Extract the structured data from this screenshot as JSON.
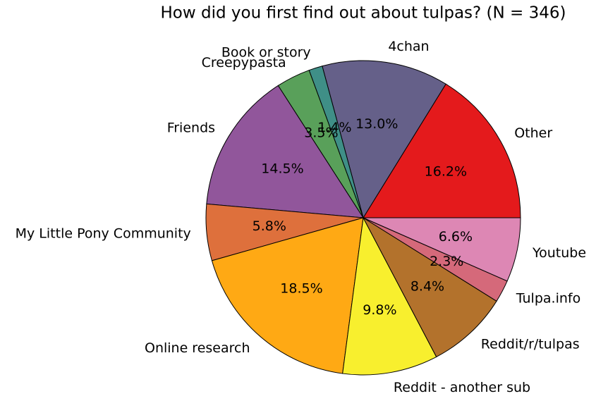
{
  "chart_data": {
    "type": "pie",
    "title": "How did you first find out about tulpas? (N = 346)",
    "categories": [
      "Other",
      "4chan",
      "Book or story",
      "Creepypasta",
      "Friends",
      "My Little Pony Community",
      "Online research",
      "Reddit - another sub",
      "Reddit/r/tulpas",
      "Tulpa.info",
      "Youtube"
    ],
    "values": [
      16.2,
      13.0,
      1.4,
      3.5,
      14.5,
      5.8,
      18.5,
      9.8,
      8.4,
      2.3,
      6.6
    ],
    "value_labels": [
      "16.2%",
      "13.0%",
      "1.4%",
      "3.5%",
      "14.5%",
      "5.8%",
      "18.5%",
      "9.8%",
      "8.4%",
      "2.3%",
      "6.6%"
    ],
    "colors": [
      "#e41a1c",
      "#656089",
      "#3f8f87",
      "#59a05a",
      "#91569b",
      "#de703c",
      "#ffa914",
      "#f8ef2e",
      "#b3722c",
      "#d5697a",
      "#dd87b4"
    ]
  }
}
